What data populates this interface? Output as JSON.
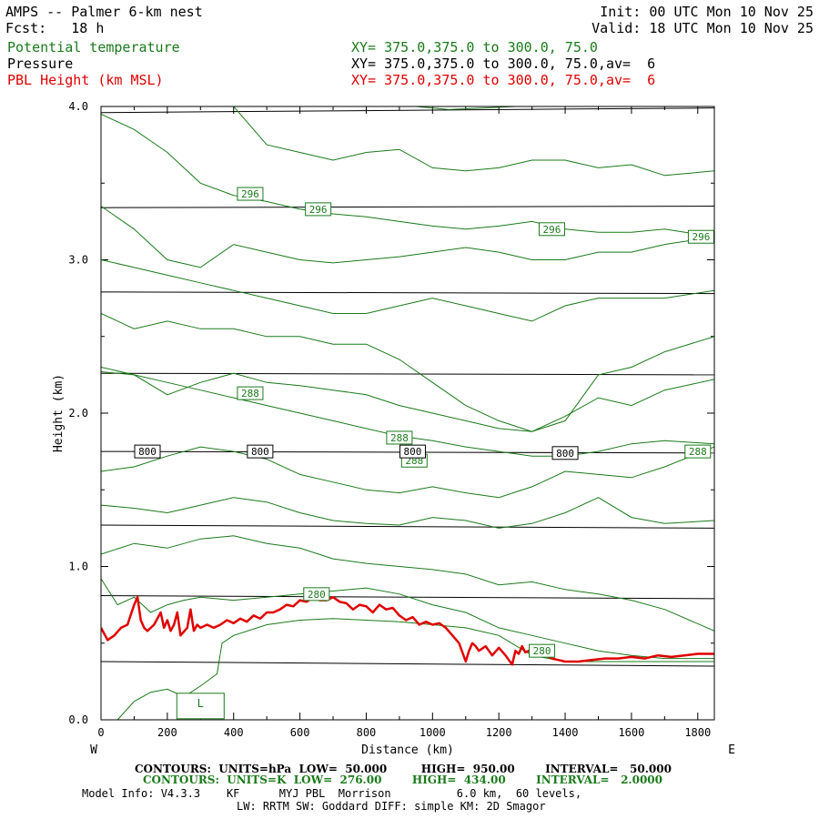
{
  "header": {
    "title": "AMPS -- Palmer 6-km nest",
    "init": "Init: 00 UTC Mon 10 Nov 25",
    "fcst": "Fcst:   18 h",
    "valid": "Valid: 18 UTC Mon 10 Nov 25",
    "fields": [
      {
        "name": "Potential temperature",
        "xy": "XY= 375.0,375.0 to 300.0, 75.0",
        "color": "#1a7a1a"
      },
      {
        "name": "Pressure",
        "xy": "XY= 375.0,375.0 to 300.0, 75.0,av=  6",
        "color": "#000000"
      },
      {
        "name": "PBL Height (km MSL)",
        "xy": "XY= 375.0,375.0 to 300.0, 75.0,av=  6",
        "color": "#e00000"
      }
    ]
  },
  "chart_data": {
    "type": "line",
    "title": "AMPS -- Palmer 6-km nest",
    "xlabel": "Distance (km)",
    "ylabel": "Height (km)",
    "xlim": [
      0,
      1850
    ],
    "ylim": [
      0,
      4
    ],
    "x_ticks": [
      0,
      200,
      400,
      600,
      800,
      1000,
      1200,
      1400,
      1600,
      1800
    ],
    "y_ticks": [
      "0.0",
      "1.0",
      "2.0",
      "3.0",
      "4.0"
    ],
    "left_end": "W",
    "right_end": "E",
    "pressure_contours": [
      {
        "label": "",
        "y_left": 0.38,
        "y_right": 0.35
      },
      {
        "label": "",
        "y_left": 0.81,
        "y_right": 0.79
      },
      {
        "label": "",
        "y_left": 1.27,
        "y_right": 1.25
      },
      {
        "label": "800",
        "y_left": 1.75,
        "y_right": 1.74
      },
      {
        "label": "",
        "y_left": 2.26,
        "y_right": 2.25
      },
      {
        "label": "",
        "y_left": 2.79,
        "y_right": 2.78
      },
      {
        "label": "",
        "y_left": 3.34,
        "y_right": 3.35
      },
      {
        "label": "",
        "y_left": 3.96,
        "y_right": 3.99
      }
    ],
    "pressure_labels": [
      {
        "text": "800",
        "x": 140,
        "y": 1.75
      },
      {
        "text": "800",
        "x": 480,
        "y": 1.75
      },
      {
        "text": "800",
        "x": 940,
        "y": 1.75
      },
      {
        "text": "800",
        "x": 1400,
        "y": 1.74
      }
    ],
    "theta_contours": [
      {
        "x": [
          50,
          100,
          150,
          200,
          250,
          300,
          350,
          365,
          400,
          500,
          600,
          700,
          800,
          900,
          1000,
          1100,
          1200,
          1300,
          1400,
          1500,
          1600,
          1700,
          1850
        ],
        "y": [
          0.0,
          0.12,
          0.18,
          0.2,
          0.15,
          0.22,
          0.3,
          0.5,
          0.55,
          0.62,
          0.65,
          0.66,
          0.65,
          0.64,
          0.62,
          0.6,
          0.55,
          0.42,
          0.38,
          0.38,
          0.38,
          0.38,
          0.38
        ]
      },
      {
        "x": [
          0,
          50,
          100,
          150,
          200,
          250,
          300,
          400,
          500,
          600,
          700,
          800,
          900,
          1000,
          1100,
          1200,
          1300,
          1400,
          1500,
          1600,
          1700,
          1850
        ],
        "y": [
          0.92,
          0.75,
          0.8,
          0.7,
          0.75,
          0.78,
          0.8,
          0.78,
          0.8,
          0.82,
          0.84,
          0.86,
          0.82,
          0.75,
          0.7,
          0.6,
          0.55,
          0.5,
          0.45,
          0.42,
          0.4,
          0.4
        ]
      },
      {
        "x": [
          0,
          100,
          200,
          300,
          400,
          500,
          600,
          700,
          800,
          900,
          1000,
          1100,
          1200,
          1300,
          1400,
          1500,
          1600,
          1700,
          1850
        ],
        "y": [
          1.08,
          1.15,
          1.12,
          1.18,
          1.2,
          1.15,
          1.12,
          1.05,
          1.02,
          1.0,
          0.98,
          0.95,
          0.88,
          0.9,
          0.85,
          0.82,
          0.78,
          0.72,
          0.58
        ]
      },
      {
        "x": [
          0,
          100,
          200,
          300,
          400,
          500,
          600,
          700,
          800,
          900,
          1000,
          1100,
          1200,
          1300,
          1400,
          1500,
          1600,
          1700,
          1850
        ],
        "y": [
          1.4,
          1.38,
          1.35,
          1.4,
          1.45,
          1.42,
          1.35,
          1.3,
          1.28,
          1.27,
          1.32,
          1.3,
          1.25,
          1.28,
          1.35,
          1.45,
          1.32,
          1.28,
          1.3
        ]
      },
      {
        "x": [
          0,
          100,
          200,
          300,
          400,
          500,
          600,
          700,
          800,
          900,
          1000,
          1100,
          1200,
          1300,
          1400,
          1500,
          1600,
          1700,
          1850
        ],
        "y": [
          1.62,
          1.65,
          1.72,
          1.78,
          1.75,
          1.7,
          1.6,
          1.55,
          1.5,
          1.48,
          1.52,
          1.48,
          1.45,
          1.52,
          1.62,
          1.6,
          1.58,
          1.65,
          1.78
        ]
      },
      {
        "x": [
          0,
          100,
          200,
          300,
          400,
          500,
          600,
          700,
          800,
          900,
          1000,
          1100,
          1200,
          1300,
          1400,
          1500,
          1600,
          1700,
          1850
        ],
        "y": [
          2.27,
          2.25,
          2.2,
          2.15,
          2.1,
          2.05,
          2.0,
          1.95,
          1.9,
          1.85,
          1.82,
          1.78,
          1.75,
          1.72,
          1.72,
          1.75,
          1.8,
          1.82,
          1.8
        ]
      },
      {
        "x": [
          0,
          100,
          200,
          300,
          400,
          500,
          600,
          700,
          800,
          900,
          1000,
          1100,
          1200,
          1300,
          1400,
          1500,
          1600,
          1700,
          1850
        ],
        "y": [
          2.3,
          2.25,
          2.12,
          2.2,
          2.26,
          2.2,
          2.18,
          2.15,
          2.12,
          2.05,
          2.0,
          1.95,
          1.9,
          1.88,
          1.98,
          2.1,
          2.05,
          2.15,
          2.22
        ]
      },
      {
        "x": [
          0,
          100,
          200,
          300,
          400,
          500,
          600,
          700,
          800,
          900,
          1000,
          1100,
          1200,
          1300,
          1400,
          1500,
          1600,
          1700,
          1850
        ],
        "y": [
          2.65,
          2.55,
          2.6,
          2.55,
          2.55,
          2.5,
          2.5,
          2.45,
          2.45,
          2.35,
          2.2,
          2.05,
          1.95,
          1.88,
          1.95,
          2.25,
          2.3,
          2.4,
          2.5
        ]
      },
      {
        "x": [
          0,
          100,
          200,
          300,
          400,
          500,
          600,
          700,
          800,
          900,
          1000,
          1100,
          1200,
          1300,
          1400,
          1500,
          1600,
          1700,
          1850
        ],
        "y": [
          3.0,
          2.95,
          2.9,
          2.85,
          2.8,
          2.75,
          2.7,
          2.65,
          2.65,
          2.7,
          2.75,
          2.7,
          2.65,
          2.6,
          2.7,
          2.75,
          2.75,
          2.75,
          2.8
        ]
      },
      {
        "x": [
          0,
          100,
          200,
          300,
          400,
          500,
          600,
          700,
          800,
          900,
          1000,
          1100,
          1200,
          1300,
          1400,
          1500,
          1600,
          1700,
          1850
        ],
        "y": [
          3.35,
          3.2,
          3.0,
          2.95,
          3.1,
          3.05,
          3.0,
          2.98,
          3.0,
          3.02,
          3.05,
          3.08,
          3.05,
          3.0,
          3.0,
          3.05,
          3.05,
          3.1,
          3.15
        ]
      },
      {
        "x": [
          0,
          100,
          200,
          300,
          400,
          500,
          600,
          700,
          800,
          900,
          1000,
          1100,
          1200,
          1300,
          1400,
          1500,
          1600,
          1700,
          1850
        ],
        "y": [
          3.95,
          3.85,
          3.7,
          3.5,
          3.42,
          3.38,
          3.33,
          3.3,
          3.28,
          3.25,
          3.22,
          3.2,
          3.22,
          3.25,
          3.2,
          3.18,
          3.18,
          3.2,
          3.15
        ]
      },
      {
        "x": [
          400,
          500,
          600,
          700,
          800,
          900,
          1000,
          1100,
          1200,
          1300,
          1400,
          1500,
          1600,
          1700,
          1850
        ],
        "y": [
          4.0,
          3.75,
          3.7,
          3.65,
          3.7,
          3.72,
          3.6,
          3.58,
          3.6,
          3.65,
          3.65,
          3.6,
          3.62,
          3.55,
          3.58
        ]
      },
      {
        "x": [
          950,
          1050,
          1150,
          1250
        ],
        "y": [
          4.0,
          3.98,
          3.99,
          4.0
        ]
      }
    ],
    "theta_labels": [
      {
        "text": "296",
        "x": 450,
        "y": 3.43
      },
      {
        "text": "296",
        "x": 655,
        "y": 3.33
      },
      {
        "text": "296",
        "x": 1360,
        "y": 3.2
      },
      {
        "text": "296",
        "x": 1810,
        "y": 3.15
      },
      {
        "text": "288",
        "x": 450,
        "y": 2.13
      },
      {
        "text": "288",
        "x": 900,
        "y": 1.84
      },
      {
        "text": "288",
        "x": 945,
        "y": 1.69
      },
      {
        "text": "288",
        "x": 1800,
        "y": 1.75
      },
      {
        "text": "280",
        "x": 650,
        "y": 0.82
      },
      {
        "text": "280",
        "x": 1330,
        "y": 0.45
      }
    ],
    "low_marker": {
      "text": "L",
      "x": 300,
      "y": 0.09
    },
    "pbl_height": {
      "color": "#e00000",
      "x": [
        0,
        20,
        40,
        60,
        80,
        100,
        110,
        120,
        130,
        140,
        160,
        180,
        190,
        200,
        210,
        220,
        230,
        240,
        260,
        270,
        280,
        290,
        300,
        320,
        340,
        360,
        380,
        400,
        420,
        440,
        460,
        480,
        500,
        520,
        540,
        560,
        580,
        600,
        620,
        640,
        660,
        680,
        700,
        720,
        740,
        760,
        780,
        800,
        820,
        840,
        860,
        880,
        900,
        920,
        940,
        960,
        980,
        1000,
        1020,
        1040,
        1060,
        1080,
        1100,
        1110,
        1120,
        1130,
        1140,
        1160,
        1180,
        1200,
        1220,
        1240,
        1250,
        1260,
        1270,
        1280,
        1300,
        1320,
        1340,
        1360,
        1380,
        1400,
        1440,
        1480,
        1520,
        1560,
        1600,
        1640,
        1680,
        1720,
        1760,
        1800,
        1850
      ],
      "y": [
        0.6,
        0.52,
        0.55,
        0.6,
        0.62,
        0.75,
        0.8,
        0.65,
        0.6,
        0.58,
        0.62,
        0.7,
        0.6,
        0.65,
        0.58,
        0.62,
        0.7,
        0.55,
        0.6,
        0.72,
        0.58,
        0.62,
        0.6,
        0.62,
        0.6,
        0.62,
        0.65,
        0.63,
        0.66,
        0.64,
        0.68,
        0.66,
        0.7,
        0.7,
        0.72,
        0.75,
        0.74,
        0.78,
        0.77,
        0.8,
        0.78,
        0.78,
        0.8,
        0.77,
        0.76,
        0.72,
        0.75,
        0.74,
        0.7,
        0.75,
        0.72,
        0.73,
        0.68,
        0.65,
        0.67,
        0.62,
        0.64,
        0.62,
        0.63,
        0.6,
        0.55,
        0.5,
        0.38,
        0.45,
        0.5,
        0.48,
        0.45,
        0.48,
        0.42,
        0.47,
        0.42,
        0.36,
        0.45,
        0.43,
        0.48,
        0.44,
        0.46,
        0.42,
        0.42,
        0.4,
        0.39,
        0.38,
        0.38,
        0.39,
        0.4,
        0.4,
        0.41,
        0.4,
        0.42,
        0.41,
        0.42,
        0.43,
        0.43
      ]
    }
  },
  "footer": {
    "line1": "CONTOURS:  UNITS=hPa  LOW=  50.000         HIGH=  950.00        INTERVAL=   50.000",
    "line2": "CONTOURS:  UNITS=K  LOW=  276.00        HIGH=  434.00        INTERVAL=   2.0000",
    "line3": "Model Info: V4.3.3    KF      MYJ PBL  Morrison          6.0 km,  60 levels,",
    "line4": "LW: RRTM SW: Goddard DIFF: simple KM: 2D Smagor",
    "colors": {
      "pressure": "#000000",
      "theta": "#1a7a1a"
    }
  }
}
